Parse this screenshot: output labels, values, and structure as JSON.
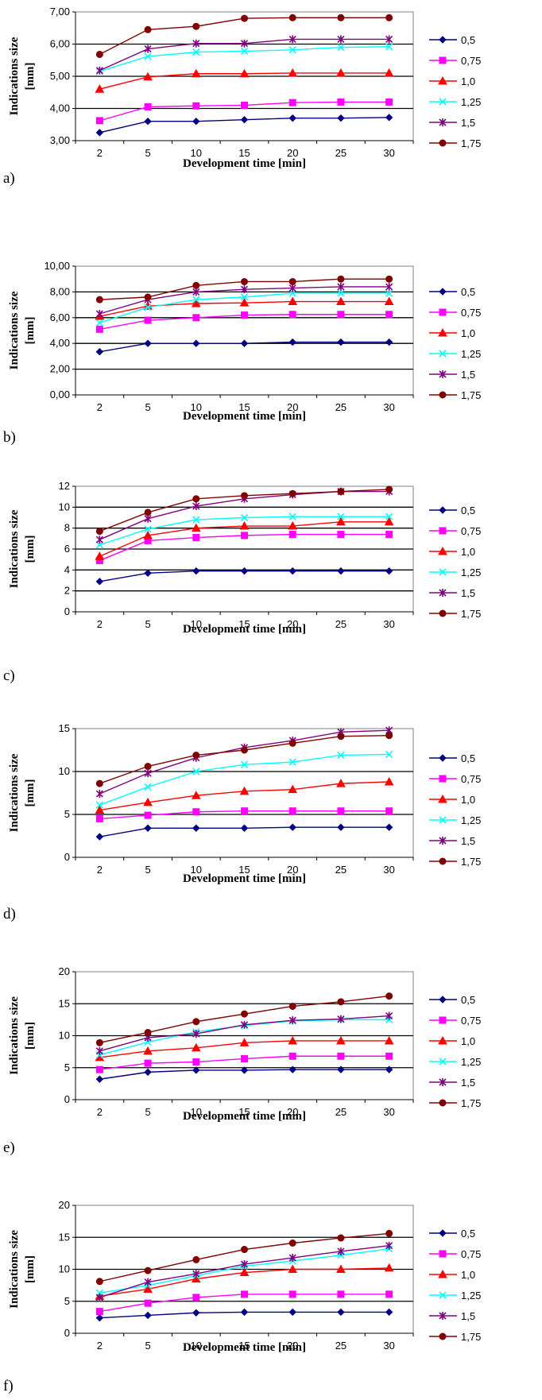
{
  "series_colors": [
    "#000080",
    "#FF00FF",
    "#FF0000",
    "#00FFFF",
    "#800080",
    "#800000"
  ],
  "series_markers": [
    "diamond",
    "square",
    "triangle",
    "x",
    "star",
    "circle"
  ],
  "chart_data": [
    {
      "id": "a",
      "panel_label": "a)",
      "type": "line",
      "xlabel": "Development time [min]",
      "ylabel": "Indications size [mm]",
      "categories": [
        "2",
        "5",
        "10",
        "15",
        "20",
        "25",
        "30"
      ],
      "ylim": [
        3,
        7
      ],
      "yticks": [
        "3,00",
        "4,00",
        "5,00",
        "6,00",
        "7,00"
      ],
      "grid": true,
      "legend": "right",
      "series": [
        {
          "name": "0,5",
          "values": [
            3.25,
            3.6,
            3.6,
            3.65,
            3.7,
            3.7,
            3.72
          ]
        },
        {
          "name": "0,75",
          "values": [
            3.62,
            4.05,
            4.08,
            4.1,
            4.18,
            4.2,
            4.2
          ]
        },
        {
          "name": "1,0",
          "values": [
            4.6,
            4.98,
            5.08,
            5.08,
            5.1,
            5.1,
            5.1
          ]
        },
        {
          "name": "1,25",
          "values": [
            5.15,
            5.62,
            5.75,
            5.78,
            5.82,
            5.9,
            5.92
          ]
        },
        {
          "name": "1,5",
          "values": [
            5.18,
            5.85,
            6.02,
            6.02,
            6.15,
            6.15,
            6.15
          ]
        },
        {
          "name": "1,75",
          "values": [
            5.68,
            6.45,
            6.55,
            6.8,
            6.82,
            6.82,
            6.82
          ]
        }
      ]
    },
    {
      "id": "b",
      "panel_label": "b)",
      "type": "line",
      "xlabel": "Development time [min]",
      "ylabel": "Indications size [mm]",
      "categories": [
        "2",
        "5",
        "10",
        "15",
        "20",
        "25",
        "30"
      ],
      "ylim": [
        0,
        10
      ],
      "yticks": [
        "0,00",
        "2,00",
        "4,00",
        "6,00",
        "8,00",
        "10,00"
      ],
      "grid": true,
      "legend": "right",
      "series": [
        {
          "name": "0,5",
          "values": [
            3.35,
            4.0,
            4.0,
            4.0,
            4.1,
            4.1,
            4.1
          ]
        },
        {
          "name": "0,75",
          "values": [
            5.1,
            5.8,
            6.0,
            6.2,
            6.25,
            6.25,
            6.25
          ]
        },
        {
          "name": "1,0",
          "values": [
            6.1,
            6.9,
            7.1,
            7.15,
            7.25,
            7.25,
            7.25
          ]
        },
        {
          "name": "1,25",
          "values": [
            5.6,
            6.8,
            7.4,
            7.6,
            7.9,
            7.9,
            7.9
          ]
        },
        {
          "name": "1,5",
          "values": [
            6.3,
            7.4,
            8.0,
            8.2,
            8.3,
            8.4,
            8.4
          ]
        },
        {
          "name": "1,75",
          "values": [
            7.4,
            7.6,
            8.5,
            8.8,
            8.8,
            9.0,
            9.0
          ]
        }
      ]
    },
    {
      "id": "c",
      "panel_label": "c)",
      "type": "line",
      "xlabel": "Development time [min]",
      "ylabel": "Indications size [mm]",
      "categories": [
        "2",
        "5",
        "10",
        "15",
        "20",
        "25",
        "30"
      ],
      "ylim": [
        0,
        12
      ],
      "yticks": [
        "0",
        "2",
        "4",
        "6",
        "8",
        "10",
        "12"
      ],
      "grid": true,
      "legend": "right",
      "series": [
        {
          "name": "0,5",
          "values": [
            2.9,
            3.7,
            3.9,
            3.9,
            3.9,
            3.9,
            3.9
          ]
        },
        {
          "name": "0,75",
          "values": [
            4.9,
            6.8,
            7.1,
            7.3,
            7.4,
            7.4,
            7.4
          ]
        },
        {
          "name": "1,0",
          "values": [
            5.3,
            7.3,
            8.0,
            8.2,
            8.2,
            8.6,
            8.6
          ]
        },
        {
          "name": "1,25",
          "values": [
            6.4,
            7.9,
            8.8,
            9.0,
            9.1,
            9.1,
            9.1
          ]
        },
        {
          "name": "1,5",
          "values": [
            6.9,
            8.9,
            10.1,
            10.8,
            11.2,
            11.5,
            11.5
          ]
        },
        {
          "name": "1,75",
          "values": [
            7.7,
            9.5,
            10.8,
            11.1,
            11.3,
            11.5,
            11.7
          ]
        }
      ]
    },
    {
      "id": "d",
      "panel_label": "d)",
      "type": "line",
      "xlabel": "Development time [min]",
      "ylabel": "Indications size [mm]",
      "categories": [
        "2",
        "5",
        "10",
        "15",
        "20",
        "25",
        "30"
      ],
      "ylim": [
        0,
        15
      ],
      "yticks": [
        "0",
        "5",
        "10",
        "15"
      ],
      "grid": true,
      "legend": "right",
      "series": [
        {
          "name": "0,5",
          "values": [
            2.4,
            3.4,
            3.4,
            3.4,
            3.5,
            3.5,
            3.5
          ]
        },
        {
          "name": "0,75",
          "values": [
            4.5,
            4.9,
            5.3,
            5.4,
            5.4,
            5.4,
            5.4
          ]
        },
        {
          "name": "1,0",
          "values": [
            5.5,
            6.4,
            7.2,
            7.7,
            7.9,
            8.6,
            8.8
          ]
        },
        {
          "name": "1,25",
          "values": [
            6.1,
            8.2,
            10.0,
            10.8,
            11.1,
            11.9,
            12.0
          ]
        },
        {
          "name": "1,5",
          "values": [
            7.4,
            9.8,
            11.6,
            12.8,
            13.6,
            14.6,
            14.8
          ]
        },
        {
          "name": "1,75",
          "values": [
            8.6,
            10.6,
            11.9,
            12.5,
            13.3,
            14.1,
            14.2
          ]
        }
      ]
    },
    {
      "id": "e",
      "panel_label": "e)",
      "type": "line",
      "xlabel": "Development time [min]",
      "ylabel": "Indications size [mm]",
      "categories": [
        "2",
        "5",
        "10",
        "15",
        "20",
        "25",
        "30"
      ],
      "ylim": [
        0,
        20
      ],
      "yticks": [
        "0",
        "5",
        "10",
        "15",
        "20"
      ],
      "grid": true,
      "legend": "right",
      "series": [
        {
          "name": "0,5",
          "values": [
            3.2,
            4.3,
            4.6,
            4.6,
            4.7,
            4.7,
            4.7
          ]
        },
        {
          "name": "0,75",
          "values": [
            4.7,
            5.7,
            5.9,
            6.4,
            6.8,
            6.8,
            6.8
          ]
        },
        {
          "name": "1,0",
          "values": [
            6.6,
            7.6,
            8.1,
            8.9,
            9.2,
            9.2,
            9.2
          ]
        },
        {
          "name": "1,25",
          "values": [
            7.0,
            9.0,
            10.6,
            11.6,
            12.3,
            12.5,
            12.5
          ]
        },
        {
          "name": "1,5",
          "values": [
            7.6,
            9.7,
            10.3,
            11.7,
            12.4,
            12.6,
            13.1
          ]
        },
        {
          "name": "1,75",
          "values": [
            8.9,
            10.5,
            12.2,
            13.4,
            14.6,
            15.3,
            16.2
          ]
        }
      ]
    },
    {
      "id": "f",
      "panel_label": "f)",
      "type": "line",
      "xlabel": "Development time [min]",
      "ylabel": "Indications size [mm]",
      "categories": [
        "2",
        "5",
        "10",
        "15",
        "20",
        "25",
        "30"
      ],
      "ylim": [
        0,
        20
      ],
      "yticks": [
        "0",
        "5",
        "10",
        "15",
        "20"
      ],
      "grid": true,
      "legend": "right",
      "series": [
        {
          "name": "0,5",
          "values": [
            2.4,
            2.8,
            3.2,
            3.3,
            3.3,
            3.3,
            3.3
          ]
        },
        {
          "name": "0,75",
          "values": [
            3.4,
            4.7,
            5.6,
            6.1,
            6.1,
            6.1,
            6.1
          ]
        },
        {
          "name": "1,0",
          "values": [
            5.8,
            6.9,
            8.5,
            9.5,
            10.0,
            10.0,
            10.2
          ]
        },
        {
          "name": "1,25",
          "values": [
            6.3,
            7.5,
            9.0,
            10.5,
            11.3,
            12.2,
            13.2
          ]
        },
        {
          "name": "1,5",
          "values": [
            5.6,
            8.0,
            9.3,
            10.8,
            11.8,
            12.8,
            13.7
          ]
        },
        {
          "name": "1,75",
          "values": [
            8.1,
            9.8,
            11.5,
            13.1,
            14.1,
            14.9,
            15.6
          ]
        }
      ]
    }
  ]
}
